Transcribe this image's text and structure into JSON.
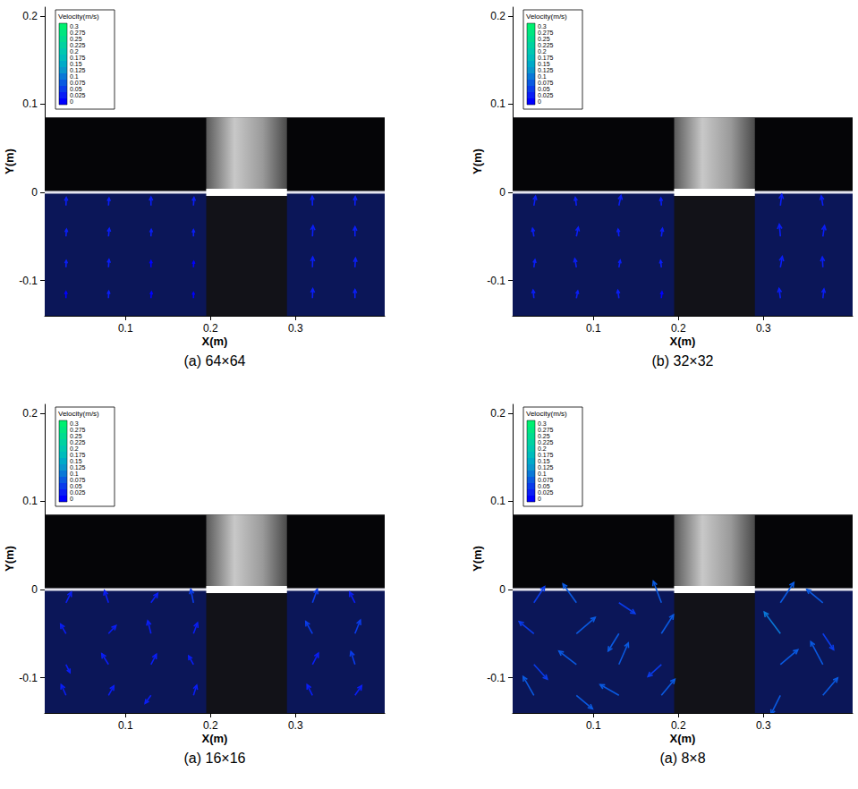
{
  "chart_data": [
    {
      "type": "vector",
      "caption": "(a) 64×64",
      "xlabel": "X(m)",
      "ylabel": "Y(m)",
      "xlim": [
        0.005,
        0.405
      ],
      "ylim": [
        -0.14,
        0.21
      ],
      "xticks": [
        0.1,
        0.2,
        0.3
      ],
      "yticks": [
        -0.1,
        0,
        0.1,
        0.2
      ],
      "grid": false,
      "colorbar": {
        "title": "Velocity(m/s)",
        "levels": [
          0,
          0.025,
          0.05,
          0.075,
          0.1,
          0.125,
          0.15,
          0.175,
          0.2,
          0.225,
          0.25,
          0.275,
          0.3
        ],
        "colors": [
          "#0000ff",
          "#0a1ef5",
          "#0a3ceb",
          "#0a5ae1",
          "#0a78d7",
          "#0a96cd",
          "#00aac8",
          "#00bcbc",
          "#00c8b0",
          "#00d2a0",
          "#00dc90",
          "#00e680",
          "#00f070"
        ]
      },
      "backdrop": {
        "dark_top": 0.085,
        "structure_xlim": [
          0.195,
          0.29
        ],
        "surface_y": 0
      },
      "vectors": [
        [
          0.03,
          -0.015,
          0.001,
          0.03
        ],
        [
          0.08,
          -0.015,
          0.002,
          0.028
        ],
        [
          0.13,
          -0.015,
          0,
          0.032
        ],
        [
          0.18,
          -0.015,
          0.002,
          0.03
        ],
        [
          0.32,
          -0.015,
          -0.001,
          0.035
        ],
        [
          0.37,
          -0.015,
          0.001,
          0.033
        ],
        [
          0.03,
          -0.05,
          0.002,
          0.027
        ],
        [
          0.08,
          -0.05,
          0.003,
          0.03
        ],
        [
          0.13,
          -0.05,
          0.001,
          0.026
        ],
        [
          0.18,
          -0.05,
          0,
          0.025
        ],
        [
          0.32,
          -0.05,
          0.002,
          0.04
        ],
        [
          0.37,
          -0.05,
          0,
          0.036
        ],
        [
          0.03,
          -0.085,
          0.001,
          0.025
        ],
        [
          0.08,
          -0.085,
          0.002,
          0.029
        ],
        [
          0.13,
          -0.085,
          0,
          0.024
        ],
        [
          0.18,
          -0.085,
          0.001,
          0.022
        ],
        [
          0.32,
          -0.085,
          0.001,
          0.038
        ],
        [
          0.37,
          -0.085,
          0.002,
          0.034
        ],
        [
          0.03,
          -0.12,
          0,
          0.024
        ],
        [
          0.08,
          -0.12,
          0.001,
          0.026
        ],
        [
          0.13,
          -0.12,
          0.002,
          0.023
        ],
        [
          0.18,
          -0.12,
          0,
          0.021
        ],
        [
          0.32,
          -0.12,
          0.001,
          0.035
        ],
        [
          0.37,
          -0.12,
          0,
          0.032
        ]
      ]
    },
    {
      "type": "vector",
      "caption": "(b) 32×32",
      "xlabel": "X(m)",
      "ylabel": "Y(m)",
      "xlim": [
        0.005,
        0.405
      ],
      "ylim": [
        -0.14,
        0.21
      ],
      "xticks": [
        0.1,
        0.2,
        0.3
      ],
      "yticks": [
        -0.1,
        0,
        0.1,
        0.2
      ],
      "grid": false,
      "colorbar": {
        "title": "Velocity(m/s)",
        "levels": [
          0,
          0.025,
          0.05,
          0.075,
          0.1,
          0.125,
          0.15,
          0.175,
          0.2,
          0.225,
          0.25,
          0.275,
          0.3
        ],
        "colors": [
          "#0000ff",
          "#0a1ef5",
          "#0a3ceb",
          "#0a5ae1",
          "#0a78d7",
          "#0a96cd",
          "#00aac8",
          "#00bcbc",
          "#00c8b0",
          "#00d2a0",
          "#00dc90",
          "#00e680",
          "#00f070"
        ]
      },
      "backdrop": {
        "dark_top": 0.085,
        "structure_xlim": [
          0.195,
          0.29
        ],
        "surface_y": 0
      },
      "vectors": [
        [
          0.03,
          -0.015,
          0.006,
          0.035
        ],
        [
          0.08,
          -0.015,
          -0.004,
          0.03
        ],
        [
          0.13,
          -0.015,
          0.008,
          0.038
        ],
        [
          0.18,
          -0.015,
          -0.002,
          0.028
        ],
        [
          0.32,
          -0.015,
          0.005,
          0.042
        ],
        [
          0.37,
          -0.015,
          -0.006,
          0.036
        ],
        [
          0.03,
          -0.05,
          -0.005,
          0.03
        ],
        [
          0.08,
          -0.05,
          0.007,
          0.034
        ],
        [
          0.13,
          -0.05,
          -0.003,
          0.027
        ],
        [
          0.18,
          -0.05,
          0.004,
          0.03
        ],
        [
          0.32,
          -0.05,
          -0.004,
          0.045
        ],
        [
          0.37,
          -0.05,
          0.006,
          0.04
        ],
        [
          0.03,
          -0.085,
          0.004,
          0.028
        ],
        [
          0.08,
          -0.085,
          -0.006,
          0.032
        ],
        [
          0.13,
          -0.085,
          0.005,
          0.026
        ],
        [
          0.18,
          -0.085,
          -0.003,
          0.025
        ],
        [
          0.32,
          -0.085,
          0.007,
          0.04
        ],
        [
          0.37,
          -0.085,
          -0.002,
          0.038
        ],
        [
          0.03,
          -0.12,
          -0.003,
          0.03
        ],
        [
          0.08,
          -0.12,
          0.005,
          0.027
        ],
        [
          0.13,
          -0.12,
          -0.004,
          0.029
        ],
        [
          0.18,
          -0.12,
          0.002,
          0.024
        ],
        [
          0.32,
          -0.12,
          -0.005,
          0.036
        ],
        [
          0.37,
          -0.12,
          0.004,
          0.034
        ]
      ]
    },
    {
      "type": "vector",
      "caption": "(a) 16×16",
      "xlabel": "X(m)",
      "ylabel": "Y(m)",
      "xlim": [
        0.005,
        0.405
      ],
      "ylim": [
        -0.14,
        0.21
      ],
      "xticks": [
        0.1,
        0.2,
        0.3
      ],
      "yticks": [
        -0.1,
        0,
        0.1,
        0.2
      ],
      "grid": false,
      "colorbar": {
        "title": "Velocity(m/s)",
        "levels": [
          0,
          0.025,
          0.05,
          0.075,
          0.1,
          0.125,
          0.15,
          0.175,
          0.2,
          0.225,
          0.25,
          0.275,
          0.3
        ],
        "colors": [
          "#0000ff",
          "#0a1ef5",
          "#0a3ceb",
          "#0a5ae1",
          "#0a78d7",
          "#0a96cd",
          "#00aac8",
          "#00bcbc",
          "#00c8b0",
          "#00d2a0",
          "#00dc90",
          "#00e680",
          "#00f070"
        ]
      },
      "backdrop": {
        "dark_top": 0.085,
        "structure_xlim": [
          0.195,
          0.29
        ],
        "surface_y": 0
      },
      "vectors": [
        [
          0.03,
          -0.015,
          0.02,
          0.04
        ],
        [
          0.08,
          -0.015,
          -0.015,
          0.045
        ],
        [
          0.13,
          -0.015,
          0.025,
          0.035
        ],
        [
          0.18,
          -0.015,
          -0.01,
          0.05
        ],
        [
          0.32,
          -0.015,
          0.018,
          0.05
        ],
        [
          0.37,
          -0.015,
          -0.02,
          0.04
        ],
        [
          0.03,
          -0.05,
          -0.02,
          0.035
        ],
        [
          0.08,
          -0.05,
          0.028,
          0.03
        ],
        [
          0.13,
          -0.05,
          -0.012,
          0.048
        ],
        [
          0.18,
          -0.05,
          0.015,
          0.04
        ],
        [
          0.32,
          -0.05,
          -0.025,
          0.045
        ],
        [
          0.37,
          -0.05,
          0.02,
          0.05
        ],
        [
          0.03,
          -0.085,
          0.015,
          -0.03
        ],
        [
          0.08,
          -0.085,
          -0.025,
          0.04
        ],
        [
          0.13,
          -0.085,
          0.02,
          0.038
        ],
        [
          0.18,
          -0.085,
          -0.018,
          0.032
        ],
        [
          0.32,
          -0.085,
          0.022,
          0.042
        ],
        [
          0.37,
          -0.085,
          -0.015,
          0.048
        ],
        [
          0.03,
          -0.12,
          -0.018,
          0.04
        ],
        [
          0.08,
          -0.12,
          0.02,
          0.035
        ],
        [
          0.13,
          -0.12,
          -0.022,
          -0.03
        ],
        [
          0.18,
          -0.12,
          0.012,
          0.038
        ],
        [
          0.32,
          -0.12,
          -0.02,
          0.04
        ],
        [
          0.37,
          -0.12,
          0.025,
          0.036
        ]
      ]
    },
    {
      "type": "vector",
      "caption": "(a) 8×8",
      "xlabel": "X(m)",
      "ylabel": "Y(m)",
      "xlim": [
        0.005,
        0.405
      ],
      "ylim": [
        -0.14,
        0.21
      ],
      "xticks": [
        0.1,
        0.2,
        0.3
      ],
      "yticks": [
        -0.1,
        0,
        0.1,
        0.2
      ],
      "grid": false,
      "colorbar": {
        "title": "Velocity(m/s)",
        "levels": [
          0,
          0.025,
          0.05,
          0.075,
          0.1,
          0.125,
          0.15,
          0.175,
          0.2,
          0.225,
          0.25,
          0.275,
          0.3
        ],
        "colors": [
          "#0000ff",
          "#0a1ef5",
          "#0a3ceb",
          "#0a5ae1",
          "#0a78d7",
          "#0a96cd",
          "#00aac8",
          "#00bcbc",
          "#00c8b0",
          "#00d2a0",
          "#00dc90",
          "#00e680",
          "#00f070"
        ]
      },
      "backdrop": {
        "dark_top": 0.085,
        "structure_xlim": [
          0.195,
          0.29
        ],
        "surface_y": 0
      },
      "vectors": [
        [
          0.03,
          -0.015,
          0.04,
          0.06
        ],
        [
          0.08,
          -0.015,
          -0.05,
          0.07
        ],
        [
          0.13,
          -0.015,
          0.06,
          -0.04
        ],
        [
          0.18,
          -0.015,
          -0.03,
          0.08
        ],
        [
          0.32,
          -0.015,
          0.05,
          0.075
        ],
        [
          0.37,
          -0.015,
          -0.06,
          0.05
        ],
        [
          0.03,
          -0.05,
          -0.055,
          0.045
        ],
        [
          0.08,
          -0.05,
          0.07,
          0.06
        ],
        [
          0.13,
          -0.05,
          -0.04,
          -0.065
        ],
        [
          0.18,
          -0.05,
          0.045,
          0.07
        ],
        [
          0.32,
          -0.05,
          -0.06,
          0.08
        ],
        [
          0.37,
          -0.05,
          0.04,
          -0.06
        ],
        [
          0.03,
          -0.085,
          0.05,
          -0.055
        ],
        [
          0.08,
          -0.085,
          -0.065,
          0.05
        ],
        [
          0.13,
          -0.085,
          0.035,
          0.08
        ],
        [
          0.18,
          -0.085,
          -0.05,
          -0.045
        ],
        [
          0.32,
          -0.085,
          0.065,
          0.055
        ],
        [
          0.37,
          -0.085,
          -0.045,
          0.085
        ],
        [
          0.03,
          -0.12,
          -0.04,
          0.07
        ],
        [
          0.08,
          -0.12,
          0.06,
          -0.05
        ],
        [
          0.13,
          -0.12,
          -0.07,
          0.04
        ],
        [
          0.18,
          -0.12,
          0.05,
          0.06
        ],
        [
          0.32,
          -0.12,
          -0.035,
          -0.07
        ],
        [
          0.37,
          -0.12,
          0.055,
          0.065
        ]
      ]
    }
  ]
}
